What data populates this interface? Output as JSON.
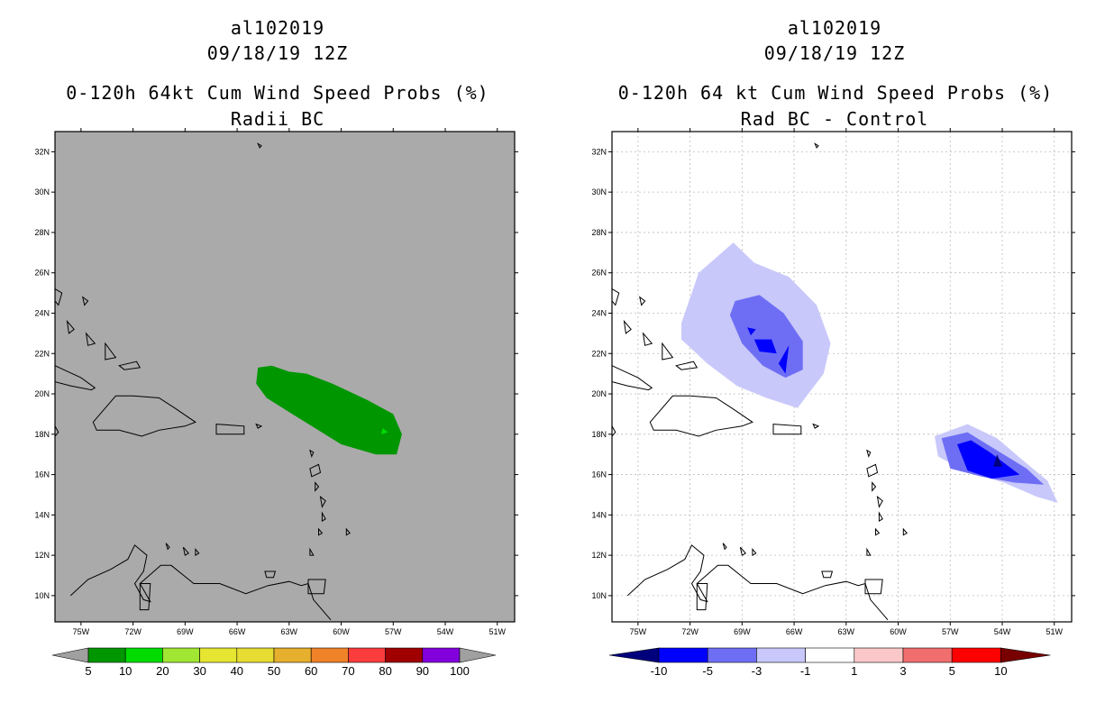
{
  "chart_data": [
    {
      "type": "heatmap",
      "storm": "al102019",
      "date": "09/18/19 12Z",
      "title": "0-120h 64kt Cum Wind Speed Probs (%)",
      "subtitle": "Radii BC",
      "lat_ticks": [
        "32N",
        "30N",
        "28N",
        "26N",
        "24N",
        "22N",
        "20N",
        "18N",
        "16N",
        "14N",
        "12N",
        "10N"
      ],
      "lon_ticks": [
        "75W",
        "72W",
        "69W",
        "66W",
        "63W",
        "60W",
        "57W",
        "54W",
        "51W"
      ],
      "xlim": [
        -76.5,
        -50.0
      ],
      "ylim": [
        8.7,
        33.0
      ],
      "colorbar": {
        "labels": [
          "5",
          "10",
          "20",
          "30",
          "40",
          "50",
          "60",
          "70",
          "80",
          "90",
          "100"
        ],
        "colors": [
          "#009600",
          "#00dc00",
          "#a0e632",
          "#e6e632",
          "#e6dc32",
          "#e6af2d",
          "#f08228",
          "#fa3c3c",
          "#a00000",
          "#8200dc"
        ],
        "end_colors": [
          "#a0a0a0",
          "#a0a0a0"
        ]
      },
      "background": "#aaaaaa",
      "field": [
        {
          "level": 5,
          "label": "5-10%",
          "color": "#009600",
          "outline_lonlat": [
            [
              -64.8,
              21.3
            ],
            [
              -64.0,
              21.4
            ],
            [
              -63.0,
              21.1
            ],
            [
              -62.0,
              21.0
            ],
            [
              -60.5,
              20.5
            ],
            [
              -58.5,
              19.7
            ],
            [
              -57.0,
              19.0
            ],
            [
              -56.5,
              18.0
            ],
            [
              -56.8,
              17.0
            ],
            [
              -58.0,
              17.0
            ],
            [
              -60.0,
              17.5
            ],
            [
              -61.5,
              18.3
            ],
            [
              -63.0,
              19.1
            ],
            [
              -64.3,
              19.8
            ],
            [
              -64.9,
              20.5
            ]
          ]
        },
        {
          "level": 10,
          "label": "10-20%",
          "color": "#00dc00",
          "outline_lonlat": [
            [
              -57.6,
              18.3
            ],
            [
              -57.3,
              18.1
            ],
            [
              -57.7,
              18.0
            ]
          ]
        }
      ]
    },
    {
      "type": "heatmap",
      "storm": "al102019",
      "date": "09/18/19 12Z",
      "title": "0-120h 64 kt Cum Wind Speed Probs (%)",
      "subtitle": "Rad BC - Control",
      "lat_ticks": [
        "32N",
        "30N",
        "28N",
        "26N",
        "24N",
        "22N",
        "20N",
        "18N",
        "16N",
        "14N",
        "12N",
        "10N"
      ],
      "lon_ticks": [
        "75W",
        "72W",
        "69W",
        "66W",
        "63W",
        "60W",
        "57W",
        "54W",
        "51W"
      ],
      "xlim": [
        -76.5,
        -50.0
      ],
      "ylim": [
        8.7,
        33.0
      ],
      "grid": true,
      "colorbar": {
        "labels": [
          "-10",
          "-5",
          "-3",
          "-1",
          "1",
          "3",
          "5",
          "10"
        ],
        "colors": [
          "#0000ff",
          "#6e6ef5",
          "#c8c8fa",
          "#ffffff",
          "#fac8c8",
          "#f06e6e",
          "#ff0000"
        ],
        "end_colors": [
          "#00007d",
          "#780000"
        ]
      },
      "background": "#ffffff",
      "field": [
        {
          "level": -1,
          "label": "-3 to -1",
          "color": "#c8c8fa",
          "outline_lonlat": [
            [
              -72.5,
              23.5
            ],
            [
              -71.5,
              26.0
            ],
            [
              -69.5,
              27.5
            ],
            [
              -68.3,
              26.5
            ],
            [
              -66.3,
              25.8
            ],
            [
              -64.7,
              24.4
            ],
            [
              -63.9,
              22.5
            ],
            [
              -64.3,
              21.0
            ],
            [
              -65.8,
              19.3
            ],
            [
              -67.6,
              19.8
            ],
            [
              -69.3,
              20.4
            ],
            [
              -71.0,
              21.5
            ],
            [
              -72.5,
              22.7
            ]
          ]
        },
        {
          "level": -3,
          "label": "-5 to -3",
          "color": "#6e6ef5",
          "outline_lonlat": [
            [
              -69.4,
              24.6
            ],
            [
              -68.0,
              24.9
            ],
            [
              -66.6,
              24.0
            ],
            [
              -65.5,
              22.6
            ],
            [
              -65.5,
              21.2
            ],
            [
              -66.5,
              20.8
            ],
            [
              -67.8,
              21.4
            ],
            [
              -69.0,
              22.5
            ],
            [
              -69.7,
              23.9
            ]
          ]
        },
        {
          "level": -5,
          "label": "-10 to -5",
          "color": "#0000ff",
          "outline_lonlat": [
            [
              -68.3,
              22.7
            ],
            [
              -67.3,
              22.7
            ],
            [
              -67.0,
              22.0
            ],
            [
              -68.0,
              22.1
            ]
          ]
        },
        {
          "level": -5,
          "label": "-10 to -5",
          "color": "#0000ff",
          "outline_lonlat": [
            [
              -66.3,
              22.4
            ],
            [
              -66.9,
              21.5
            ],
            [
              -66.5,
              21.0
            ]
          ]
        },
        {
          "level": -5,
          "label": "-10 to -5",
          "color": "#0000ff",
          "outline_lonlat": [
            [
              -68.7,
              23.3
            ],
            [
              -68.2,
              23.2
            ],
            [
              -68.5,
              22.9
            ]
          ]
        },
        {
          "level": -1,
          "label": "-3 to -1",
          "color": "#c8c8fa",
          "outline_lonlat": [
            [
              -57.9,
              17.9
            ],
            [
              -56.0,
              18.5
            ],
            [
              -54.3,
              17.8
            ],
            [
              -52.8,
              16.7
            ],
            [
              -51.4,
              15.7
            ],
            [
              -50.8,
              14.6
            ],
            [
              -52.0,
              14.9
            ],
            [
              -53.9,
              15.6
            ],
            [
              -56.0,
              16.1
            ],
            [
              -57.7,
              16.9
            ]
          ]
        },
        {
          "level": -3,
          "label": "-5 to -3",
          "color": "#6e6ef5",
          "outline_lonlat": [
            [
              -57.5,
              17.8
            ],
            [
              -56.0,
              18.1
            ],
            [
              -54.3,
              17.2
            ],
            [
              -52.6,
              16.3
            ],
            [
              -51.6,
              15.5
            ],
            [
              -53.3,
              15.6
            ],
            [
              -55.2,
              15.9
            ],
            [
              -57.0,
              16.3
            ]
          ]
        },
        {
          "level": -5,
          "label": "-10 to -5",
          "color": "#0000ff",
          "outline_lonlat": [
            [
              -56.6,
              17.5
            ],
            [
              -55.8,
              17.7
            ],
            [
              -54.7,
              17.1
            ],
            [
              -53.0,
              16.0
            ],
            [
              -54.6,
              15.8
            ],
            [
              -56.0,
              16.2
            ]
          ]
        },
        {
          "level": -10,
          "label": "< -10",
          "color": "#00007d",
          "outline_lonlat": [
            [
              -54.3,
              17.0
            ],
            [
              -54.0,
              16.4
            ],
            [
              -54.5,
              16.4
            ]
          ]
        }
      ]
    }
  ]
}
